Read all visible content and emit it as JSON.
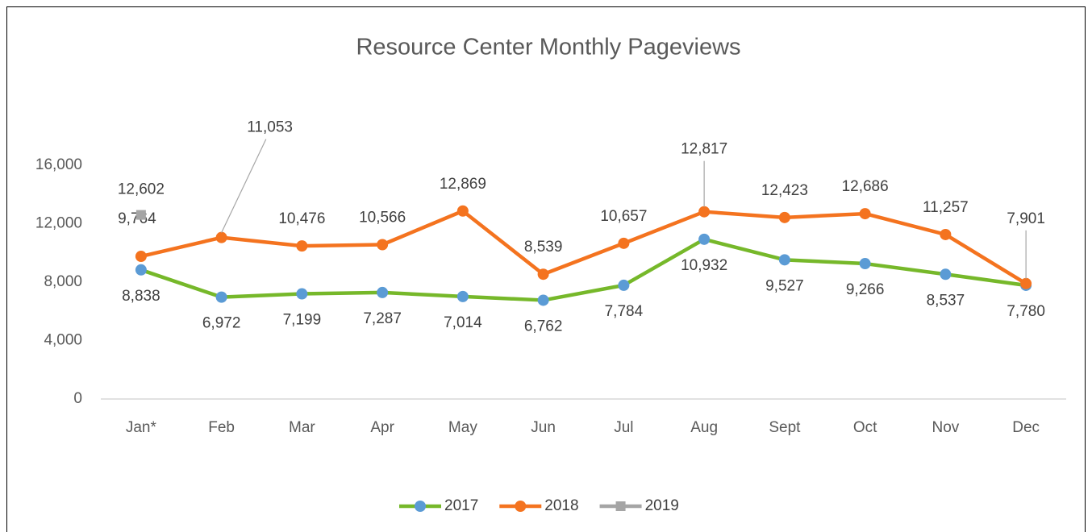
{
  "chart_data": {
    "type": "line",
    "title": "Resource Center Monthly Pageviews",
    "categories": [
      "Jan*",
      "Feb",
      "Mar",
      "Apr",
      "May",
      "Jun",
      "Jul",
      "Aug",
      "Sept",
      "Oct",
      "Nov",
      "Dec"
    ],
    "series": [
      {
        "name": "2017",
        "color": "#76b82a",
        "marker_color": "#5b9bd5",
        "marker": "circle",
        "values": [
          8838,
          6972,
          7199,
          7287,
          7014,
          6762,
          7784,
          10932,
          9527,
          9266,
          8537,
          7780
        ],
        "value_labels": [
          "8,838",
          "6,972",
          "7,199",
          "7,287",
          "7,014",
          "6,762",
          "7,784",
          "10,932",
          "9,527",
          "9,266",
          "8,537",
          "7,780"
        ]
      },
      {
        "name": "2018",
        "color": "#f4731f",
        "marker_color": "#f4731f",
        "marker": "circle",
        "values": [
          9764,
          11053,
          10476,
          10566,
          12869,
          8539,
          10657,
          12817,
          12423,
          12686,
          11257,
          7901
        ],
        "value_labels": [
          "9,764",
          "11,053",
          "10,476",
          "10,566",
          "12,869",
          "8,539",
          "10,657",
          "12,817",
          "12,423",
          "12,686",
          "11,257",
          "7,901"
        ]
      },
      {
        "name": "2019",
        "color": "#a5a5a5",
        "marker_color": "#a5a5a5",
        "marker": "square",
        "values": [
          12602,
          null,
          null,
          null,
          null,
          null,
          null,
          null,
          null,
          null,
          null,
          null
        ],
        "value_labels": [
          "12,602",
          null,
          null,
          null,
          null,
          null,
          null,
          null,
          null,
          null,
          null,
          null
        ]
      }
    ],
    "ylim": [
      0,
      16000
    ],
    "yticks": [
      0,
      {
        "value": 4000,
        "label": "4,000"
      },
      {
        "value": 8000,
        "label": "8,000"
      },
      {
        "value": 12000,
        "label": "12,000"
      },
      {
        "value": 16000,
        "label": "16,000"
      }
    ],
    "grid": false,
    "legend": "bottom"
  }
}
